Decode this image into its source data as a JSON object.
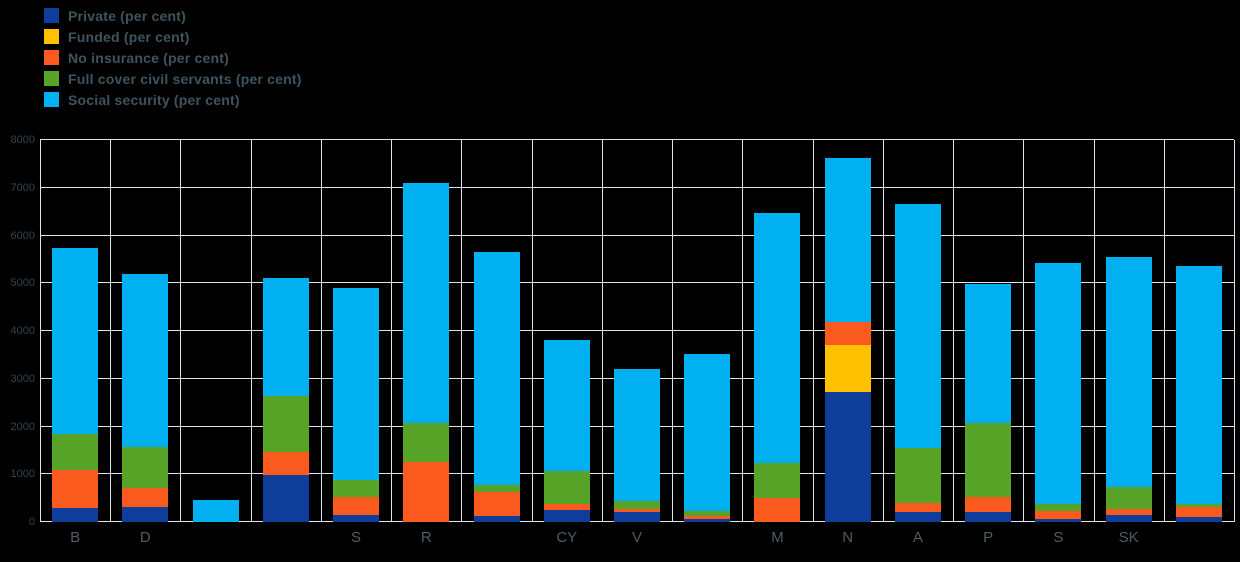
{
  "chart_data": {
    "type": "bar",
    "stacked": true,
    "title": "",
    "legend_position": "top-left",
    "grid": true,
    "background": "#000000",
    "gridline_color": "#dfe4e8",
    "ylim": [
      0,
      8000
    ],
    "yticks": [
      0,
      1000,
      2000,
      3000,
      4000,
      5000,
      6000,
      7000,
      8000
    ],
    "categories": [
      "B",
      "D",
      "",
      "",
      "S",
      "R",
      "",
      "CY",
      "V",
      "",
      "M",
      "N",
      "A",
      "P",
      "S",
      "SK",
      ""
    ],
    "series": [
      {
        "key": "private",
        "name": "Private (per cent)",
        "color": "#0f3d9a",
        "values": [
          300,
          310,
          0,
          980,
          150,
          0,
          120,
          250,
          220,
          60,
          0,
          2720,
          200,
          220,
          60,
          150,
          100
        ]
      },
      {
        "key": "funded",
        "name": "Funded (per cent)",
        "color": "#ffc000",
        "values": [
          0,
          0,
          0,
          0,
          0,
          0,
          0,
          0,
          0,
          0,
          0,
          980,
          0,
          0,
          0,
          0,
          0
        ]
      },
      {
        "key": "no-insurance",
        "name": "No insurance (per cent)",
        "color": "#fa5a1e",
        "values": [
          800,
          400,
          0,
          480,
          380,
          1260,
          500,
          120,
          60,
          60,
          500,
          480,
          200,
          300,
          180,
          120,
          210
        ]
      },
      {
        "key": "civil-servants",
        "name": "Full cover civil servants (per cent)",
        "color": "#57a327",
        "values": [
          750,
          860,
          0,
          1190,
          360,
          820,
          150,
          700,
          150,
          120,
          730,
          0,
          1150,
          1550,
          130,
          460,
          60
        ]
      },
      {
        "key": "social-security",
        "name": "Social security (per cent)",
        "color": "#00b0f0",
        "values": [
          3890,
          3620,
          460,
          2470,
          4010,
          5020,
          4880,
          2740,
          2770,
          3280,
          5240,
          3440,
          5110,
          2910,
          5050,
          4820,
          4990
        ]
      }
    ]
  }
}
